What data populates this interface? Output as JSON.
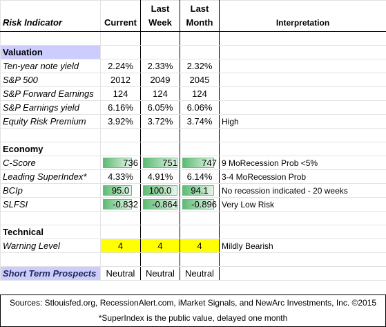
{
  "header": {
    "columns": [
      "Risk Indicator",
      "Current",
      "Last Week",
      "Last Month",
      "Interpretation"
    ]
  },
  "sections": [
    {
      "title": "Valuation",
      "title_fill": "#ccccff",
      "rows": [
        {
          "label": "Ten-year note yield",
          "current": "2.24%",
          "last_week": "2.33%",
          "last_month": "2.32%"
        },
        {
          "label": "S&P 500",
          "current": "2012",
          "last_week": "2049",
          "last_month": "2045"
        },
        {
          "label": "S&P Forward Earnings",
          "current": "124",
          "last_week": "124",
          "last_month": "124"
        },
        {
          "label": "S&P Earnings yield",
          "current": "6.16%",
          "last_week": "6.05%",
          "last_month": "6.06%"
        },
        {
          "label": "Equity Risk Premium",
          "current": "3.92%",
          "last_week": "3.72%",
          "last_month": "3.74%",
          "interpretation": "High"
        }
      ]
    },
    {
      "title": "Economy",
      "rows": [
        {
          "label": "C-Score",
          "current": "736",
          "last_week": "751",
          "last_month": "747",
          "interpretation": "9 MoRecession Prob <5%",
          "style": "databar",
          "align": "right"
        },
        {
          "label": "Leading SuperIndex*",
          "current": "4.33%",
          "last_week": "4.91%",
          "last_month": "6.14%",
          "interpretation": "3-4 MoRecession Prob"
        },
        {
          "label": "BCIp",
          "current": "95.0",
          "last_week": "100.0",
          "last_month": "94.1",
          "interpretation": "No recession indicated - 20 weeks",
          "style": "databar",
          "align": "center"
        },
        {
          "label": "SLFSI",
          "current": "-0.832",
          "last_week": "-0.864",
          "last_month": "-0.896",
          "interpretation": "Very Low Risk",
          "style": "databar",
          "align": "right"
        }
      ]
    },
    {
      "title": "Technical",
      "rows": [
        {
          "label": "Warning Level",
          "current": "4",
          "last_week": "4",
          "last_month": "4",
          "interpretation": "Mildly Bearish",
          "style": "highlight",
          "fill": "#ffff00"
        }
      ]
    }
  ],
  "summary": {
    "label": "Short Term Prospects",
    "label_fill": "#ccccff",
    "current": "Neutral",
    "last_week": "Neutral",
    "last_month": "Neutral"
  },
  "footer": {
    "sources": "Sources: Stlouisfed.org, RecessionAlert.com, iMarket Signals, and NewArc Investments, Inc. ©2015",
    "note": "*SuperIndex is the public value, delayed one month"
  }
}
